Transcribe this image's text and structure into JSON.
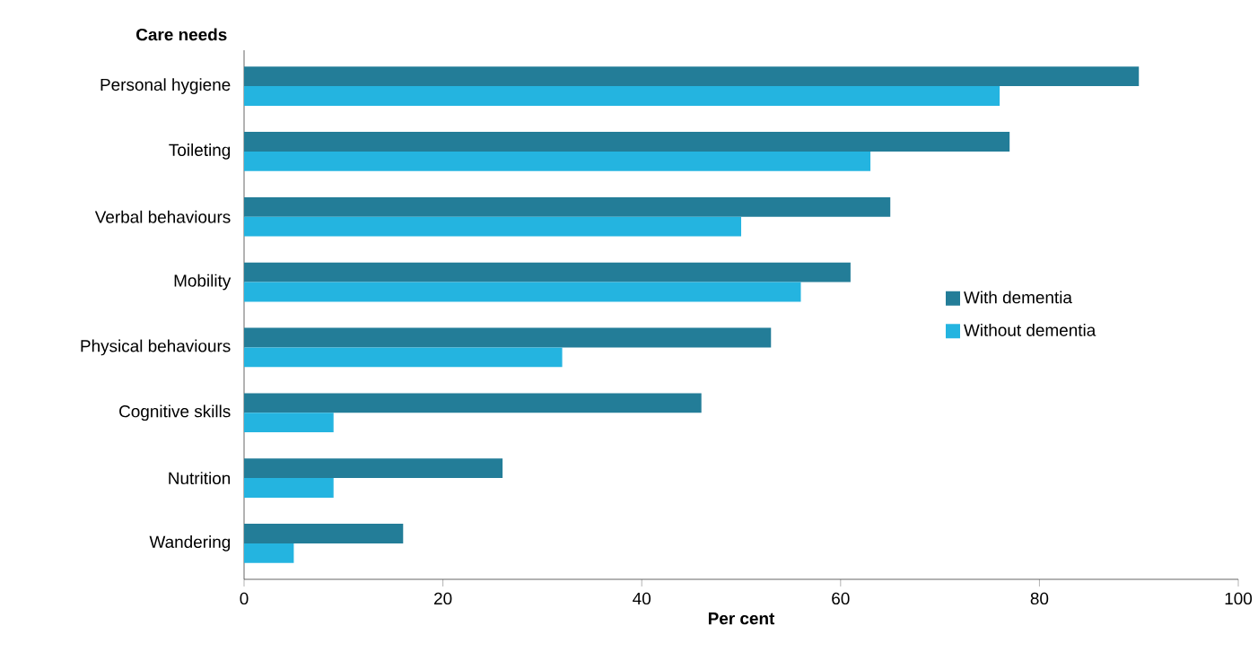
{
  "chart_data": {
    "type": "bar",
    "orientation": "horizontal",
    "ylabel": "Care needs",
    "xlabel": "Per cent",
    "categories": [
      "Personal hygiene",
      "Toileting",
      "Verbal behaviours",
      "Mobility",
      "Physical behaviours",
      "Cognitive skills",
      "Nutrition",
      "Wandering"
    ],
    "series": [
      {
        "name": "With dementia",
        "color": "#237d98",
        "values": [
          90,
          77,
          65,
          61,
          53,
          46,
          26,
          16
        ]
      },
      {
        "name": "Without dementia",
        "color": "#24b4e0",
        "values": [
          76,
          63,
          50,
          56,
          32,
          9,
          9,
          5
        ]
      }
    ],
    "xlim": [
      0,
      100
    ],
    "xticks": [
      0,
      20,
      40,
      60,
      80,
      100
    ],
    "grid": false,
    "legend": "right"
  }
}
